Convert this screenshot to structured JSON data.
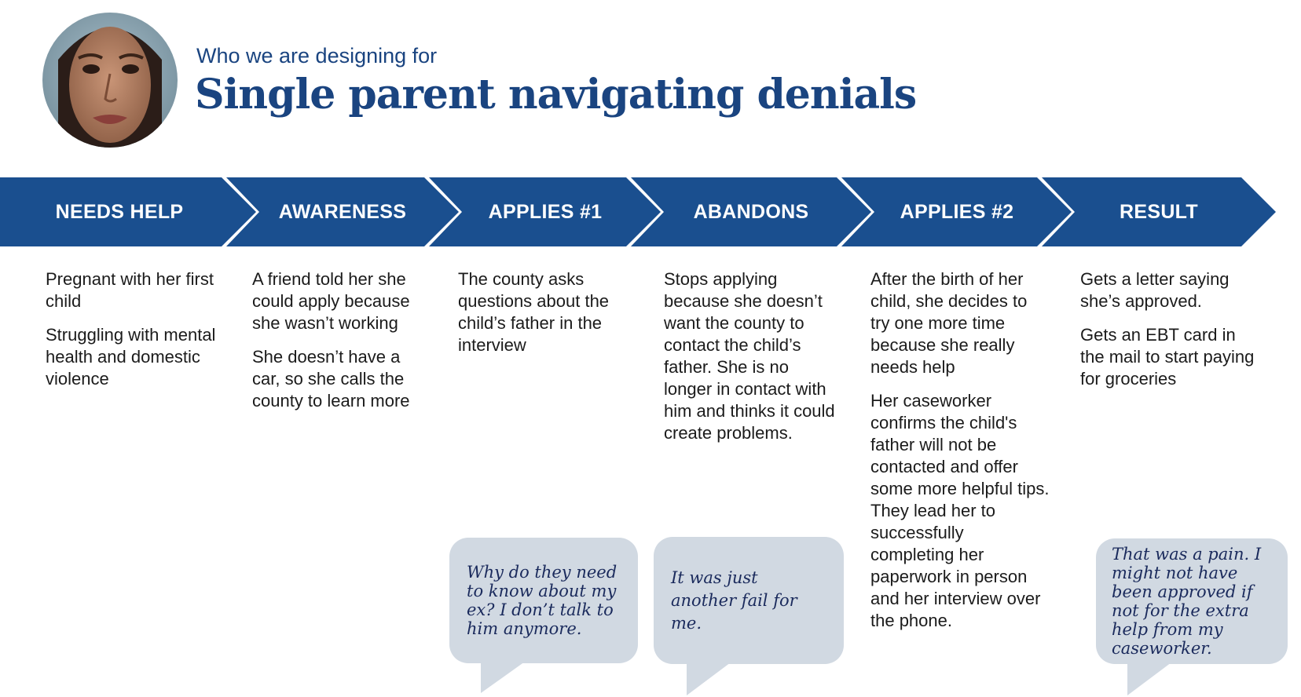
{
  "header": {
    "subtitle": "Who we are designing for",
    "title": "Single parent navigating denials"
  },
  "colors": {
    "arrow": "#1a4f8f",
    "title": "#1a4480",
    "bubble": "#d1d9e2",
    "quote_text": "#1a2a5c"
  },
  "stages": [
    {
      "label": "NEEDS HELP",
      "paragraphs": [
        "Pregnant with her first child",
        "Struggling with mental health and domestic violence"
      ]
    },
    {
      "label": "AWARENESS",
      "paragraphs": [
        "A friend told her she could apply because she wasn’t working",
        "She doesn’t have a car, so she calls the county to learn more"
      ]
    },
    {
      "label": "APPLIES #1",
      "paragraphs": [
        "The county asks questions about the child’s father in the interview"
      ],
      "quote": "Why do they need to know about my ex? I don’t talk to him anymore."
    },
    {
      "label": "ABANDONS",
      "paragraphs": [
        "Stops applying because she doesn’t want the county to contact the child’s father. She is no longer in contact with him and thinks it could create problems."
      ],
      "quote": "It was just another fail for me."
    },
    {
      "label": "APPLIES #2",
      "paragraphs": [
        "After the birth of her child, she decides to try one more time because she really needs help",
        "Her caseworker confirms the child's father will not be contacted and offer some more helpful tips. They lead her to successfully completing her paperwork in person and her interview over the phone."
      ]
    },
    {
      "label": "RESULT",
      "paragraphs": [
        "Gets a letter saying she’s approved.",
        "Gets an EBT card in the mail to start paying for groceries"
      ],
      "quote": "That was a pain. I might not have been approved if not for the extra help from my caseworker."
    }
  ]
}
